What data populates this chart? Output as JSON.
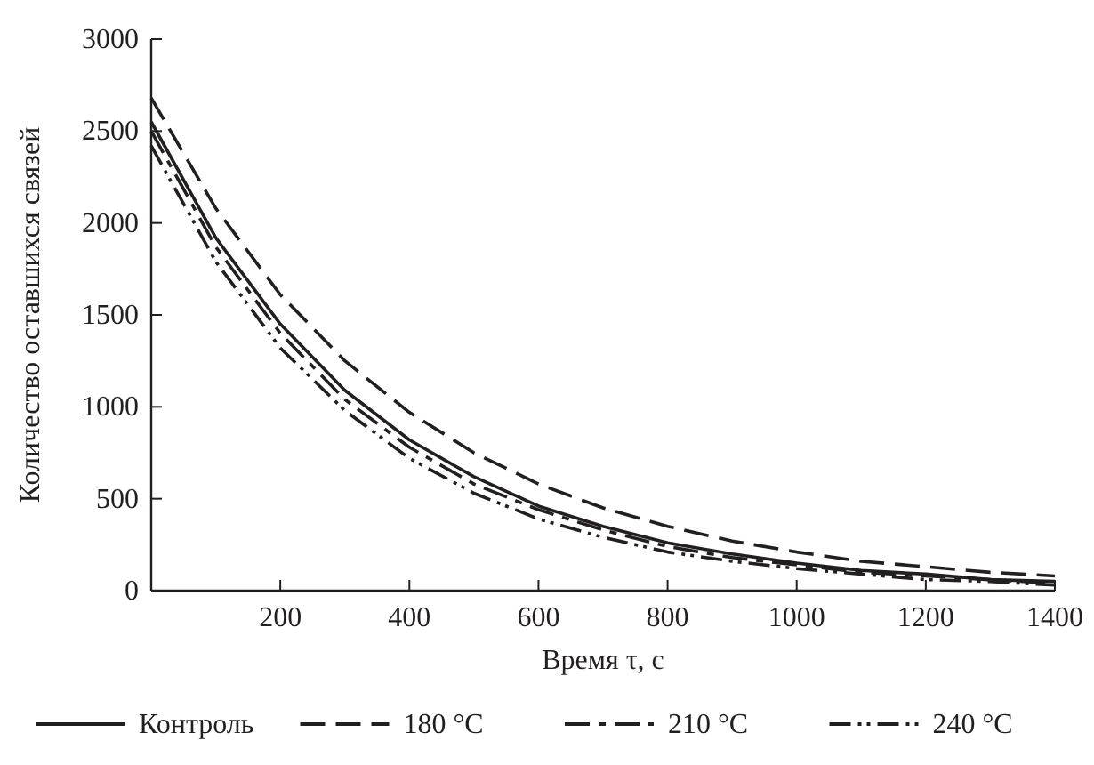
{
  "chart_data": {
    "type": "line",
    "xlabel": "Время τ, с",
    "ylabel": "Количество оставшихся связей",
    "x": [
      0,
      100,
      200,
      300,
      400,
      500,
      600,
      700,
      800,
      900,
      1000,
      1100,
      1200,
      1300,
      1400
    ],
    "xlim": [
      0,
      1400
    ],
    "xticks": [
      {
        "value": 0,
        "label": null
      },
      200,
      400,
      600,
      800,
      1000,
      1200,
      1400
    ],
    "ylim": [
      0,
      3000
    ],
    "yticks": [
      0,
      500,
      1000,
      1500,
      2000,
      2500,
      3000
    ],
    "legend": "bottom",
    "grid": false,
    "marker": "none",
    "series": [
      {
        "name": "Контроль",
        "color": "#231f20",
        "line_style": "solid",
        "values": [
          2550,
          1920,
          1450,
          1090,
          820,
          620,
          460,
          350,
          260,
          200,
          150,
          110,
          90,
          60,
          50
        ]
      },
      {
        "name": "180 °C",
        "color": "#231f20",
        "line_style": "dashed",
        "values": [
          2680,
          2080,
          1610,
          1250,
          970,
          750,
          580,
          450,
          350,
          270,
          210,
          160,
          130,
          100,
          80
        ]
      },
      {
        "name": "210 °C",
        "color": "#231f20",
        "line_style": "dashdot",
        "values": [
          2500,
          1870,
          1400,
          1040,
          780,
          580,
          440,
          330,
          240,
          180,
          140,
          100,
          80,
          60,
          40
        ]
      },
      {
        "name": "240 °C",
        "color": "#231f20",
        "line_style": "dashdotdot",
        "values": [
          2420,
          1790,
          1320,
          980,
          720,
          530,
          390,
          290,
          210,
          160,
          120,
          90,
          60,
          50,
          30
        ]
      }
    ]
  }
}
